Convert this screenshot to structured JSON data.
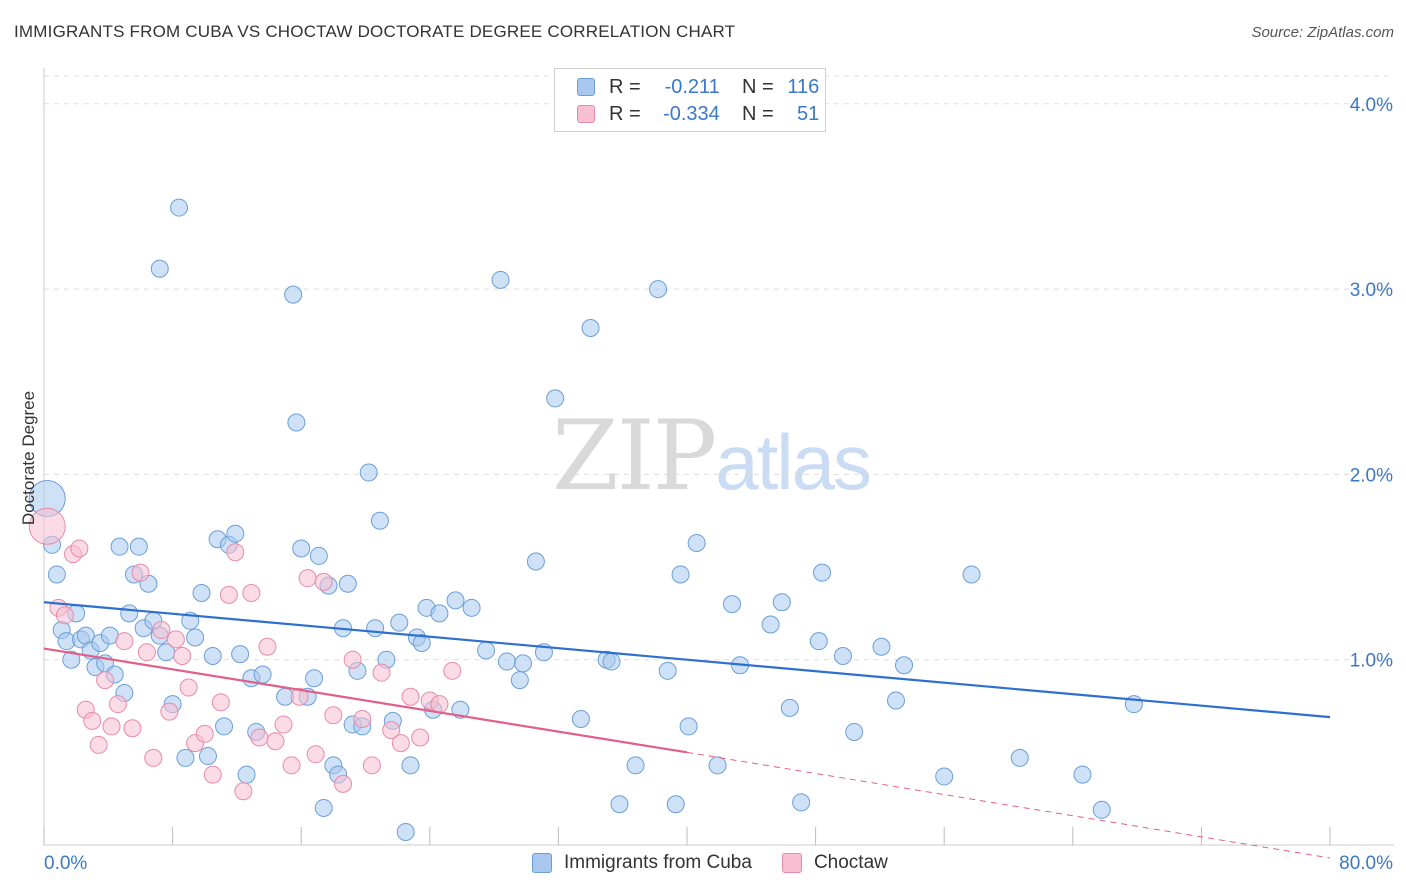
{
  "title": "IMMIGRANTS FROM CUBA VS CHOCTAW DOCTORATE DEGREE CORRELATION CHART",
  "source": "Source: ZipAtlas.com",
  "watermark": {
    "part1": "ZIP",
    "part2": "atlas"
  },
  "legend": {
    "r_label": "R =",
    "n_label": "N =",
    "rows": [
      {
        "r": "-0.211",
        "n": "116",
        "color": "#a8c8f0",
        "border": "#6a9fd8"
      },
      {
        "r": "-0.334",
        "n": "51",
        "color": "#f8c0d2",
        "border": "#e88aaa"
      }
    ]
  },
  "bottom_legend": [
    {
      "label": "Immigrants from Cuba",
      "color": "#a8c8f0",
      "border": "#6a9fd8"
    },
    {
      "label": "Choctaw",
      "color": "#f8c0d2",
      "border": "#e88aaa"
    }
  ],
  "chart_data": {
    "type": "scatter",
    "ylabel": "Doctorate Degree",
    "x_tick_labels": [
      "0.0%",
      "80.0%"
    ],
    "y_tick_labels": [
      "1.0%",
      "2.0%",
      "3.0%",
      "4.0%"
    ],
    "y_ticks": [
      1.0,
      2.0,
      3.0,
      4.0
    ],
    "xlim": [
      0,
      80
    ],
    "ylim": [
      0,
      4.15
    ],
    "grid": true,
    "series": [
      {
        "name": "Immigrants from Cuba",
        "color": "#a8c8f0",
        "stroke": "#6a9fd8",
        "trend": {
          "x0": 0,
          "y0": 1.31,
          "x1": 80,
          "y1": 0.69,
          "color": "#2f6fce"
        },
        "points": [
          [
            0.2,
            1.87
          ],
          [
            0.5,
            1.62
          ],
          [
            0.8,
            1.46
          ],
          [
            1.1,
            1.16
          ],
          [
            1.4,
            1.1
          ],
          [
            1.7,
            1.0
          ],
          [
            2.0,
            1.25
          ],
          [
            2.3,
            1.11
          ],
          [
            2.6,
            1.13
          ],
          [
            2.9,
            1.05
          ],
          [
            3.2,
            0.96
          ],
          [
            3.5,
            1.09
          ],
          [
            3.8,
            0.98
          ],
          [
            4.1,
            1.13
          ],
          [
            4.4,
            0.92
          ],
          [
            4.7,
            1.61
          ],
          [
            5.0,
            0.82
          ],
          [
            5.3,
            1.25
          ],
          [
            5.6,
            1.46
          ],
          [
            5.9,
            1.61
          ],
          [
            6.2,
            1.17
          ],
          [
            6.5,
            1.41
          ],
          [
            6.8,
            1.21
          ],
          [
            7.2,
            1.13
          ],
          [
            7.6,
            1.04
          ],
          [
            8.0,
            0.76
          ],
          [
            8.4,
            3.44
          ],
          [
            8.8,
            0.47
          ],
          [
            9.1,
            1.21
          ],
          [
            9.4,
            1.12
          ],
          [
            9.8,
            1.36
          ],
          [
            10.2,
            0.48
          ],
          [
            10.5,
            1.02
          ],
          [
            10.8,
            1.65
          ],
          [
            11.2,
            0.64
          ],
          [
            11.5,
            1.62
          ],
          [
            11.9,
            1.68
          ],
          [
            12.2,
            1.03
          ],
          [
            12.6,
            0.38
          ],
          [
            12.9,
            0.9
          ],
          [
            13.2,
            0.61
          ],
          [
            13.6,
            0.92
          ],
          [
            7.2,
            3.11
          ],
          [
            15.0,
            0.8
          ],
          [
            15.5,
            2.97
          ],
          [
            15.7,
            2.28
          ],
          [
            16.0,
            1.6
          ],
          [
            16.4,
            0.8
          ],
          [
            16.8,
            0.9
          ],
          [
            17.1,
            1.56
          ],
          [
            17.4,
            0.2
          ],
          [
            17.7,
            1.4
          ],
          [
            18.0,
            0.43
          ],
          [
            18.3,
            0.38
          ],
          [
            18.6,
            1.17
          ],
          [
            18.9,
            1.41
          ],
          [
            19.2,
            0.65
          ],
          [
            19.5,
            0.94
          ],
          [
            19.8,
            0.64
          ],
          [
            20.2,
            2.01
          ],
          [
            20.6,
            1.17
          ],
          [
            20.9,
            1.75
          ],
          [
            21.3,
            1.0
          ],
          [
            21.7,
            0.67
          ],
          [
            22.1,
            1.2
          ],
          [
            22.5,
            0.07
          ],
          [
            22.8,
            0.43
          ],
          [
            23.2,
            1.12
          ],
          [
            23.5,
            1.09
          ],
          [
            23.8,
            1.28
          ],
          [
            24.2,
            0.73
          ],
          [
            24.6,
            1.25
          ],
          [
            25.6,
            1.32
          ],
          [
            25.9,
            0.73
          ],
          [
            26.6,
            1.28
          ],
          [
            27.5,
            1.05
          ],
          [
            28.4,
            3.05
          ],
          [
            28.8,
            0.99
          ],
          [
            29.6,
            0.89
          ],
          [
            29.8,
            0.98
          ],
          [
            30.6,
            1.53
          ],
          [
            31.1,
            1.04
          ],
          [
            31.8,
            2.41
          ],
          [
            33.4,
            0.68
          ],
          [
            34.0,
            2.79
          ],
          [
            35.0,
            1.0
          ],
          [
            35.3,
            0.99
          ],
          [
            35.8,
            0.22
          ],
          [
            36.8,
            0.43
          ],
          [
            38.2,
            3.0
          ],
          [
            38.8,
            0.94
          ],
          [
            39.3,
            0.22
          ],
          [
            39.6,
            1.46
          ],
          [
            40.1,
            0.64
          ],
          [
            40.6,
            1.63
          ],
          [
            41.9,
            0.43
          ],
          [
            42.8,
            1.3
          ],
          [
            43.3,
            0.97
          ],
          [
            45.2,
            1.19
          ],
          [
            45.9,
            1.31
          ],
          [
            46.4,
            0.74
          ],
          [
            47.1,
            0.23
          ],
          [
            48.2,
            1.1
          ],
          [
            48.4,
            1.47
          ],
          [
            49.7,
            1.02
          ],
          [
            50.4,
            0.61
          ],
          [
            52.1,
            1.07
          ],
          [
            53.0,
            0.78
          ],
          [
            53.5,
            0.97
          ],
          [
            56.0,
            0.37
          ],
          [
            57.7,
            1.46
          ],
          [
            60.7,
            0.47
          ],
          [
            64.6,
            0.38
          ],
          [
            65.8,
            0.19
          ],
          [
            67.8,
            0.76
          ]
        ]
      },
      {
        "name": "Choctaw",
        "color": "#f8c0d2",
        "stroke": "#e88aaa",
        "trend": {
          "x0": 0,
          "y0": 1.06,
          "x1": 40,
          "y1": 0.5,
          "color": "#e0608a",
          "dash_to": {
            "x": 80,
            "y": -0.07
          }
        },
        "points": [
          [
            0.2,
            1.72
          ],
          [
            0.9,
            1.28
          ],
          [
            1.3,
            1.24
          ],
          [
            1.8,
            1.57
          ],
          [
            2.2,
            1.6
          ],
          [
            2.6,
            0.73
          ],
          [
            3.0,
            0.67
          ],
          [
            3.4,
            0.54
          ],
          [
            3.8,
            0.89
          ],
          [
            4.2,
            0.64
          ],
          [
            4.6,
            0.76
          ],
          [
            5.0,
            1.1
          ],
          [
            5.5,
            0.63
          ],
          [
            6.0,
            1.47
          ],
          [
            6.4,
            1.04
          ],
          [
            6.8,
            0.47
          ],
          [
            7.3,
            1.16
          ],
          [
            7.8,
            0.72
          ],
          [
            8.2,
            1.11
          ],
          [
            8.6,
            1.02
          ],
          [
            9.0,
            0.85
          ],
          [
            9.4,
            0.55
          ],
          [
            10.0,
            0.6
          ],
          [
            10.5,
            0.38
          ],
          [
            11.0,
            0.77
          ],
          [
            11.5,
            1.35
          ],
          [
            11.9,
            1.58
          ],
          [
            12.4,
            0.29
          ],
          [
            12.9,
            1.36
          ],
          [
            13.4,
            0.58
          ],
          [
            13.9,
            1.07
          ],
          [
            14.4,
            0.56
          ],
          [
            14.9,
            0.65
          ],
          [
            15.4,
            0.43
          ],
          [
            15.9,
            0.8
          ],
          [
            16.4,
            1.44
          ],
          [
            16.9,
            0.49
          ],
          [
            17.4,
            1.42
          ],
          [
            18.0,
            0.7
          ],
          [
            18.6,
            0.33
          ],
          [
            19.2,
            1.0
          ],
          [
            19.8,
            0.68
          ],
          [
            20.4,
            0.43
          ],
          [
            21.0,
            0.93
          ],
          [
            21.6,
            0.62
          ],
          [
            22.2,
            0.55
          ],
          [
            22.8,
            0.8
          ],
          [
            23.4,
            0.58
          ],
          [
            24.0,
            0.78
          ],
          [
            24.6,
            0.76
          ],
          [
            25.4,
            0.94
          ]
        ]
      }
    ]
  }
}
